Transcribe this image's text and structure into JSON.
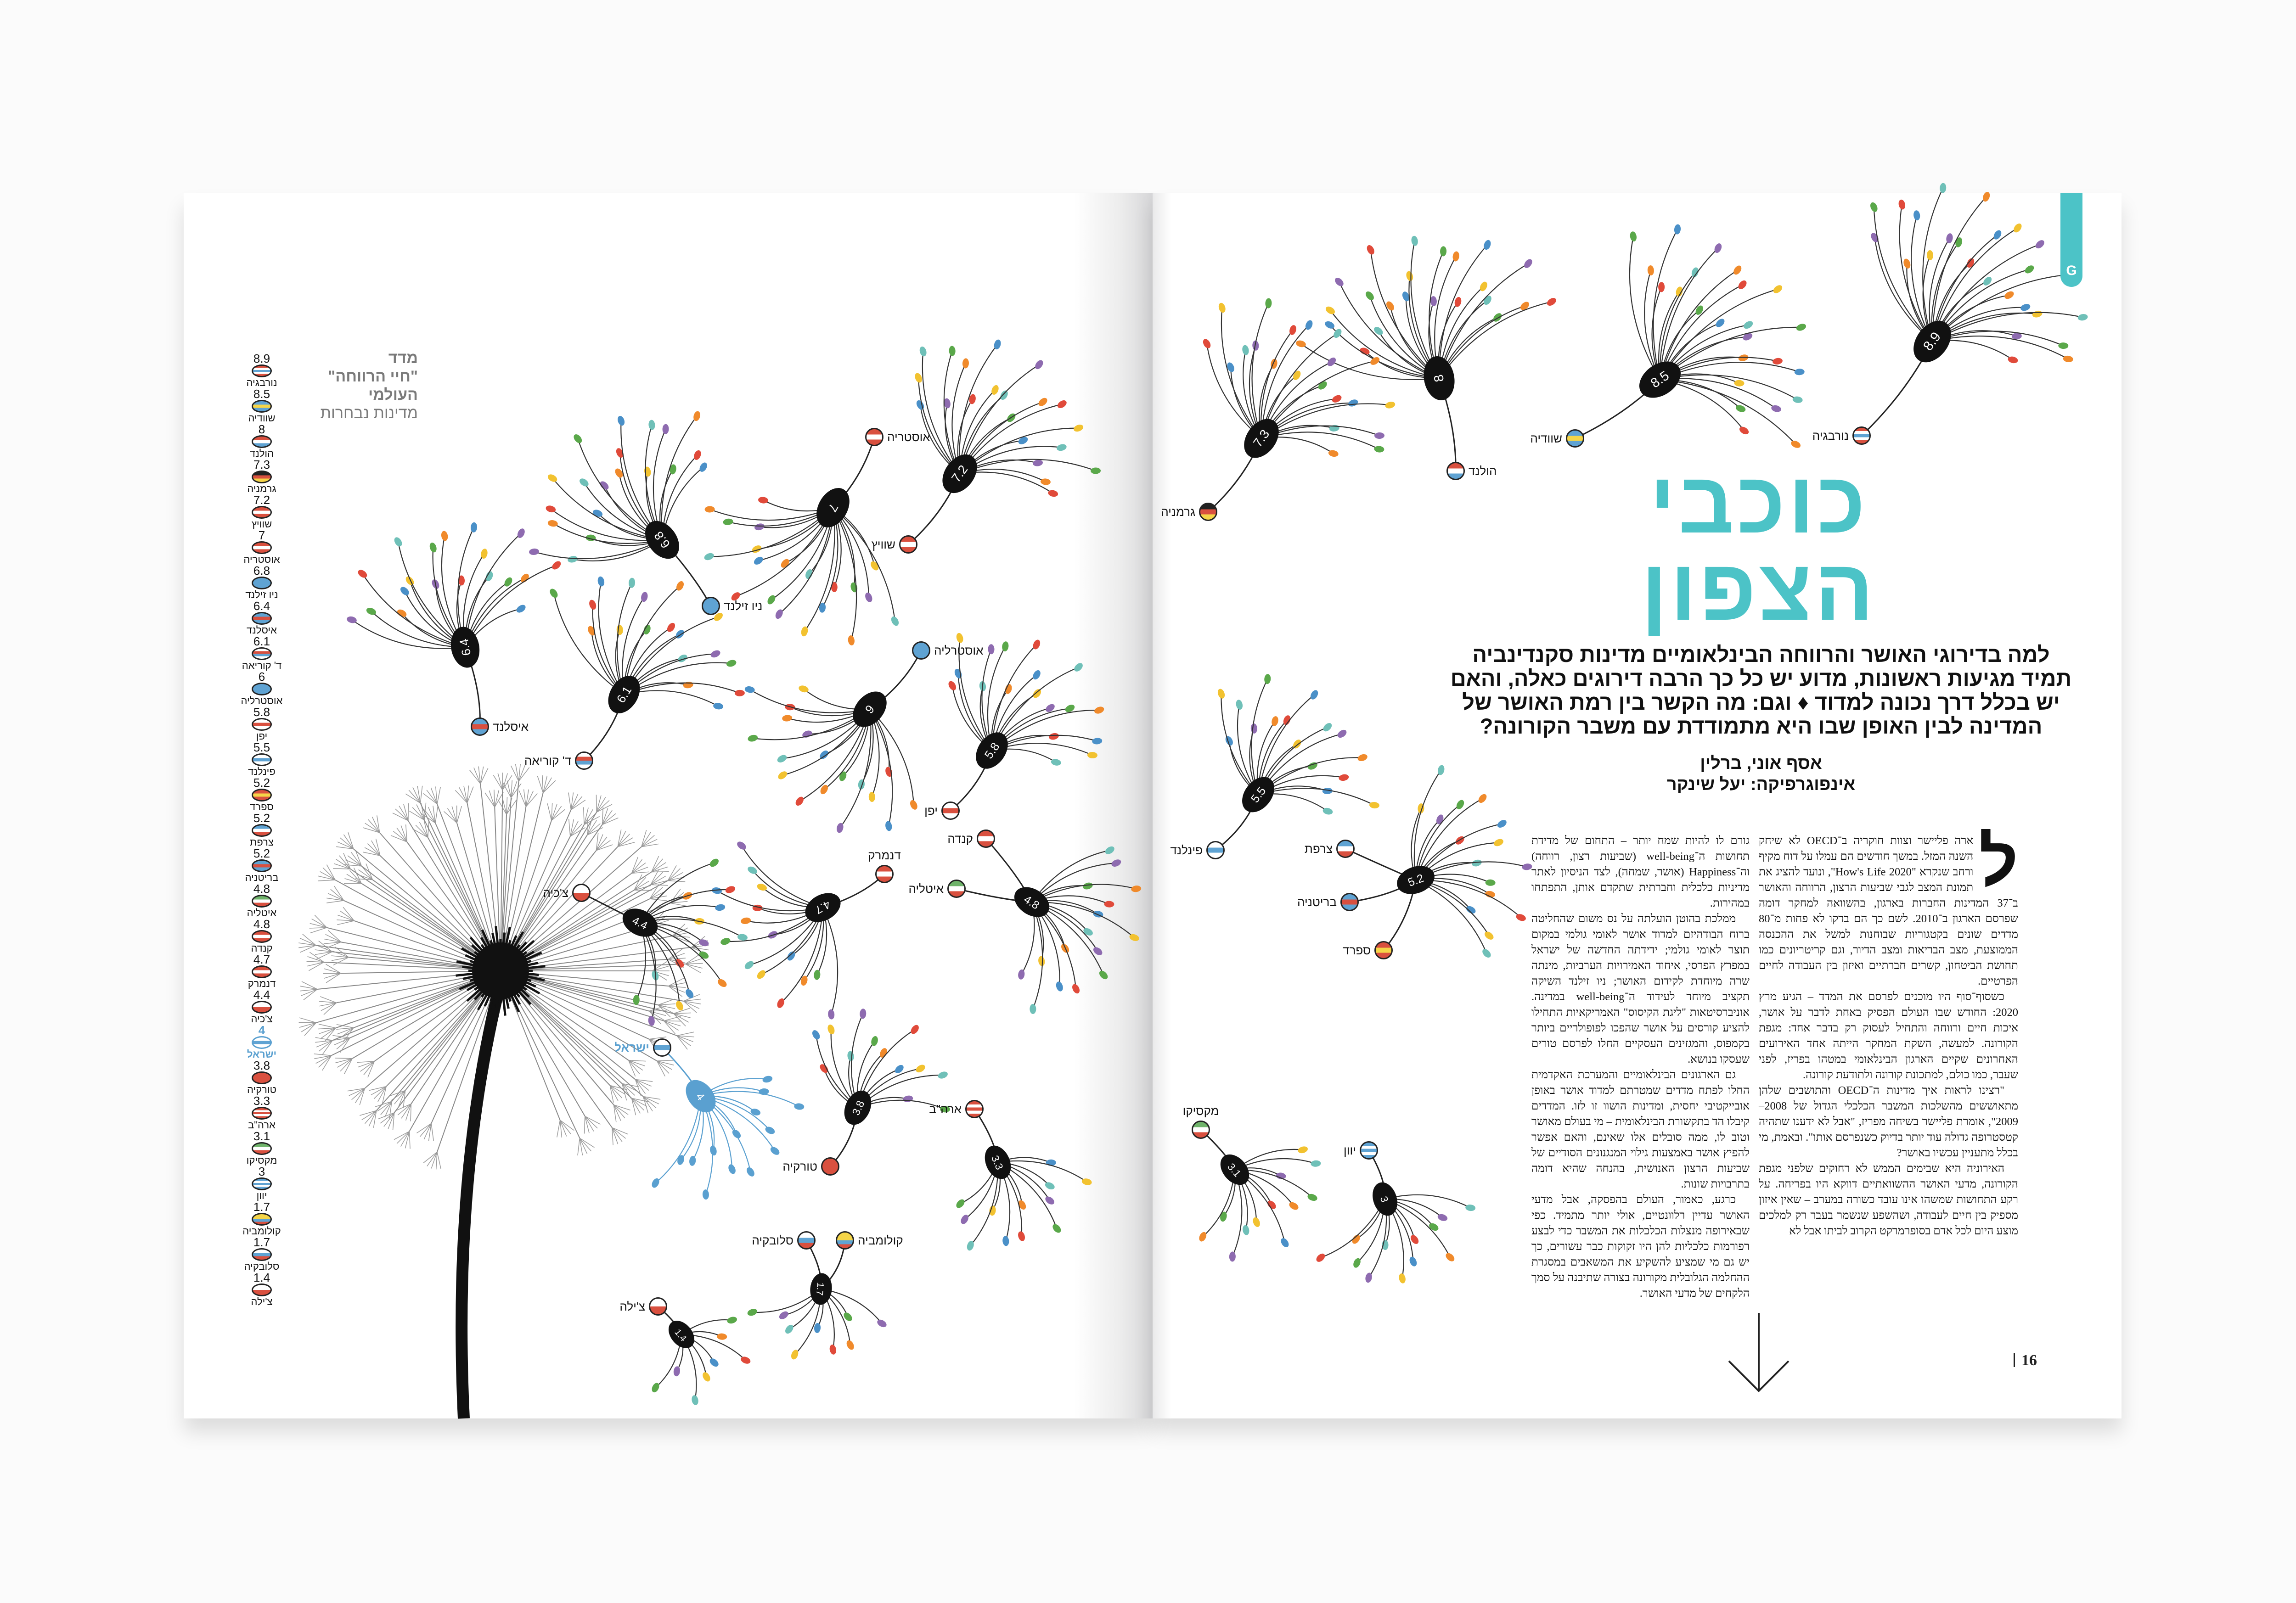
{
  "legend": {
    "title_lines": [
      "מדד",
      "\"חיי הרווחה\"",
      "העולמי"
    ],
    "subtitle": "מדינות נבחרות"
  },
  "countries": [
    {
      "name": "נורבגיה",
      "value": "8.9",
      "flag": [
        "#d9503f",
        "#ffffff",
        "#5fa3d3",
        "#ffffff",
        "#d9503f"
      ]
    },
    {
      "name": "שוודיה",
      "value": "8.5",
      "flag": [
        "#5fa3d3",
        "#f5d548",
        "#5fa3d3"
      ]
    },
    {
      "name": "הולנד",
      "value": "8",
      "flag": [
        "#d9503f",
        "#ffffff",
        "#5fa3d3"
      ]
    },
    {
      "name": "גרמניה",
      "value": "7.3",
      "flag": [
        "#222222",
        "#d9503f",
        "#f5d548"
      ]
    },
    {
      "name": "שוויץ",
      "value": "7.2",
      "flag": [
        "#d9503f",
        "#ffffff",
        "#d9503f"
      ]
    },
    {
      "name": "אוסטריה",
      "value": "7",
      "flag": [
        "#d9503f",
        "#ffffff",
        "#d9503f"
      ]
    },
    {
      "name": "ניו זילנד",
      "value": "6.8",
      "flag": [
        "#5fa3d3",
        "#5fa3d3"
      ]
    },
    {
      "name": "איסלנד",
      "value": "6.4",
      "flag": [
        "#5fa3d3",
        "#d9503f",
        "#5fa3d3"
      ]
    },
    {
      "name": "ד' קוריאה",
      "value": "6.1",
      "flag": [
        "#ffffff",
        "#d9503f",
        "#5fa3d3",
        "#ffffff"
      ]
    },
    {
      "name": "אוסטרליה",
      "value": "6",
      "flag": [
        "#5fa3d3",
        "#5fa3d3"
      ]
    },
    {
      "name": "יפן",
      "value": "5.8",
      "flag": [
        "#ffffff",
        "#d9503f",
        "#ffffff"
      ]
    },
    {
      "name": "פינלנד",
      "value": "5.5",
      "flag": [
        "#ffffff",
        "#5fa3d3",
        "#ffffff"
      ]
    },
    {
      "name": "ספרד",
      "value": "5.2",
      "flag": [
        "#d9503f",
        "#f5d548",
        "#d9503f"
      ]
    },
    {
      "name": "צרפת",
      "value": "5.2",
      "flag": [
        "#5fa3d3",
        "#ffffff",
        "#d9503f"
      ]
    },
    {
      "name": "בריטניה",
      "value": "5.2",
      "flag": [
        "#5fa3d3",
        "#d9503f",
        "#5fa3d3"
      ]
    },
    {
      "name": "איטליה",
      "value": "4.8",
      "flag": [
        "#6fb36a",
        "#ffffff",
        "#d9503f"
      ]
    },
    {
      "name": "קנדה",
      "value": "4.8",
      "flag": [
        "#d9503f",
        "#ffffff",
        "#d9503f"
      ]
    },
    {
      "name": "דנמרק",
      "value": "4.7",
      "flag": [
        "#d9503f",
        "#ffffff",
        "#d9503f"
      ]
    },
    {
      "name": "צ'כיה",
      "value": "4.4",
      "flag": [
        "#ffffff",
        "#d9503f"
      ]
    },
    {
      "name": "ישראל",
      "value": "4",
      "flag": [
        "#ffffff",
        "#5fa3d3",
        "#ffffff"
      ],
      "highlight": true
    },
    {
      "name": "טורקיה",
      "value": "3.8",
      "flag": [
        "#d9503f",
        "#d9503f"
      ]
    },
    {
      "name": "ארה\"ב",
      "value": "3.3",
      "flag": [
        "#d9503f",
        "#ffffff",
        "#d9503f",
        "#ffffff",
        "#d9503f"
      ]
    },
    {
      "name": "מקסיקו",
      "value": "3.1",
      "flag": [
        "#6fb36a",
        "#ffffff",
        "#d9503f"
      ]
    },
    {
      "name": "יוון",
      "value": "3",
      "flag": [
        "#5fa3d3",
        "#ffffff",
        "#5fa3d3",
        "#ffffff",
        "#5fa3d3"
      ]
    },
    {
      "name": "קולומביה",
      "value": "1.7",
      "flag": [
        "#f5d548",
        "#f5d548",
        "#5fa3d3",
        "#d9503f"
      ]
    },
    {
      "name": "סלובקיה",
      "value": "1.7",
      "flag": [
        "#ffffff",
        "#5fa3d3",
        "#d9503f"
      ]
    },
    {
      "name": "צ'ילה",
      "value": "1.4",
      "flag": [
        "#ffffff",
        "#d9503f"
      ]
    }
  ],
  "colors": {
    "accent": "#4cc3c7",
    "israel": "#5aa0d0",
    "petal_colors": [
      "#8e6bb0",
      "#5aa84a",
      "#f08a2b",
      "#e04a3a",
      "#4a90c8",
      "#f2c230",
      "#6fc0b8"
    ]
  },
  "article": {
    "section_tab": "G",
    "title": "כוכבי הצפון",
    "subtitle": "למה בדירוגי האושר והרווחה הבינלאומיים מדינות סקנדינביה תמיד מגיעות ראשונות, מדוע יש כל כך הרבה דירוגים כאלה, והאם יש בכלל דרך נכונה למדוד ♦ וגם: מה הקשר בין רמת האושר של המדינה לבין האופן שבו היא מתמודדת עם משבר הקורונה?",
    "author": "אסף אוני, ברלין",
    "infographics": "אינפוגרפיקה: יעל שינקר",
    "drop_cap": "ל",
    "col_right": [
      "ארה פליישר וצוות חוקריה ב־OECD לא שיחק השנה המזל. במשך חודשים הם עמלו על דוח מקיף ורחב שנקרא \"How's Life 2020\", ונועד להציג את תמונת המצב לגבי שביעות הרצון, הרווחה והאושר ב־37 המדינות החברות בארגון, בהשוואה למחקר דומה שפרסם הארגון ב־2010. לשם כך הם בדקו לא פחות מ־80 מדדים שונים בקטגוריות שבוחנות למשל את ההכנסה הממוצעת, מצב הבריאות ומצב הדיור, וגם קריטריונים כמו תחושת הביטחון, קשרים חברתיים ואיזון בין העבודה לחיים הפרטיים.",
      "כשסוף־סוף היו מוכנים לפרסם את המדד – הגיע מרץ 2020: החודש שבו העולם הפסיק באחת לדבר על אושר, איכות חיים ורווחה והתחיל לעסוק רק בדבר אחד: מגפת הקורונה. למעשה, השקת המחקר הייתה אחד האירועים האחרונים שקיים הארגון הבינלאומי במטהו בפריז, לפני שעבר, כמו כולם, למתכונת קורונה ולתודעת קורונה.",
      "\"רצינו לראות איך מדינות ה־OECD והתושבים שלהן מתאוששים מהשלכות המשבר הכלכלי הגדול של 2008–2009\", אומרת פליישר בשיחה מפריז, \"אבל לא ידענו שתהיה קטסטרופה גדולה עוד יותר בדיוק כשנפרסם אותו\". ובאמת, מי בכלל מתעניין עכשיו באושר?",
      "האירוניה היא שבימים הממש לא רחוקים שלפני מגפת הקורונה, מדעי האושר ההשוואתיים דווקא היו בפריחה. על רקע התחושות שמשהו אינו עובד כשורה במערב – שאין איזון מספיק בין חיים לעבודה, ושהשפע שנשמר בעבר רק למלכים מוצע היום לכל אדם בסופרמרקט הקרוב לביתו אבל לא"
    ],
    "col_mid": [
      "גורם לו להיות שמח יותר – התחום של מדידת תחושות ה־well-being (שביעות רצון, רווחה) וה־Happiness (אושר, שמחה), לצד הניסיון לאתר מדיניות כלכלית וחברתית שתקדם אותן, התפתחו במהירות.",
      "ממלכת בהוטן הועלתה על נס משום שהחליטה ברוח הבודהיזם למדוד אושר לאומי גולמי במקום תוצר לאומי גולמי; ידידתה החדשה של ישראל במפרץ הפרסי, איחוד האמירויות הערביות, מינתה שרה מיוחדת לקידום האושר; ניו זילנד השיקה תקציב מיוחד לעידוד ה־well-being במדינה. אוניברסיטאות \"ליגת הקיסוס\" האמריקאיות התחילו להציע קורסים על אושר שהפכו לפופולריים ביותר בקמפוס, והמגזינים העסקיים החלו לפרסם טורים שעסקו בנושא.",
      "גם הארגונים הבינלאומיים והמערכת האקדמית החלו לפתח מדדים שמטרתם למדוד אושר באופן אובייקטיבי יחסית, ומדינות הושוו זו לזו. המדדים קיבלו הד בתקשורת הבינלאומית – מי בעולם מאושר וטוב לו, ממה סובלים אלו שאינם, והאם אפשר להפיץ אושר באמצעות גילוי המנגנונים הסודיים של שביעות הרצון האנושית, בהנחה שהיא דומה בתרבויות שונות.",
      "כרגע, כאמור, העולם בהפסקה, אבל מדעי האושר עדיין רלוונטיים, אולי יותר מתמיד. כפי שבאירופה מנצלות הכלכלות את המשבר כדי לבצע רפורמות כלכליות להן היו זקוקות כבר עשורים, כך יש גם מי שמציע להשקיע את המשאבים במסגרת ההחלמה הגלובלית מקורונה בצורה שתיבנה על סמך הלקחים של מדעי האושר."
    ],
    "page_number": "16"
  }
}
